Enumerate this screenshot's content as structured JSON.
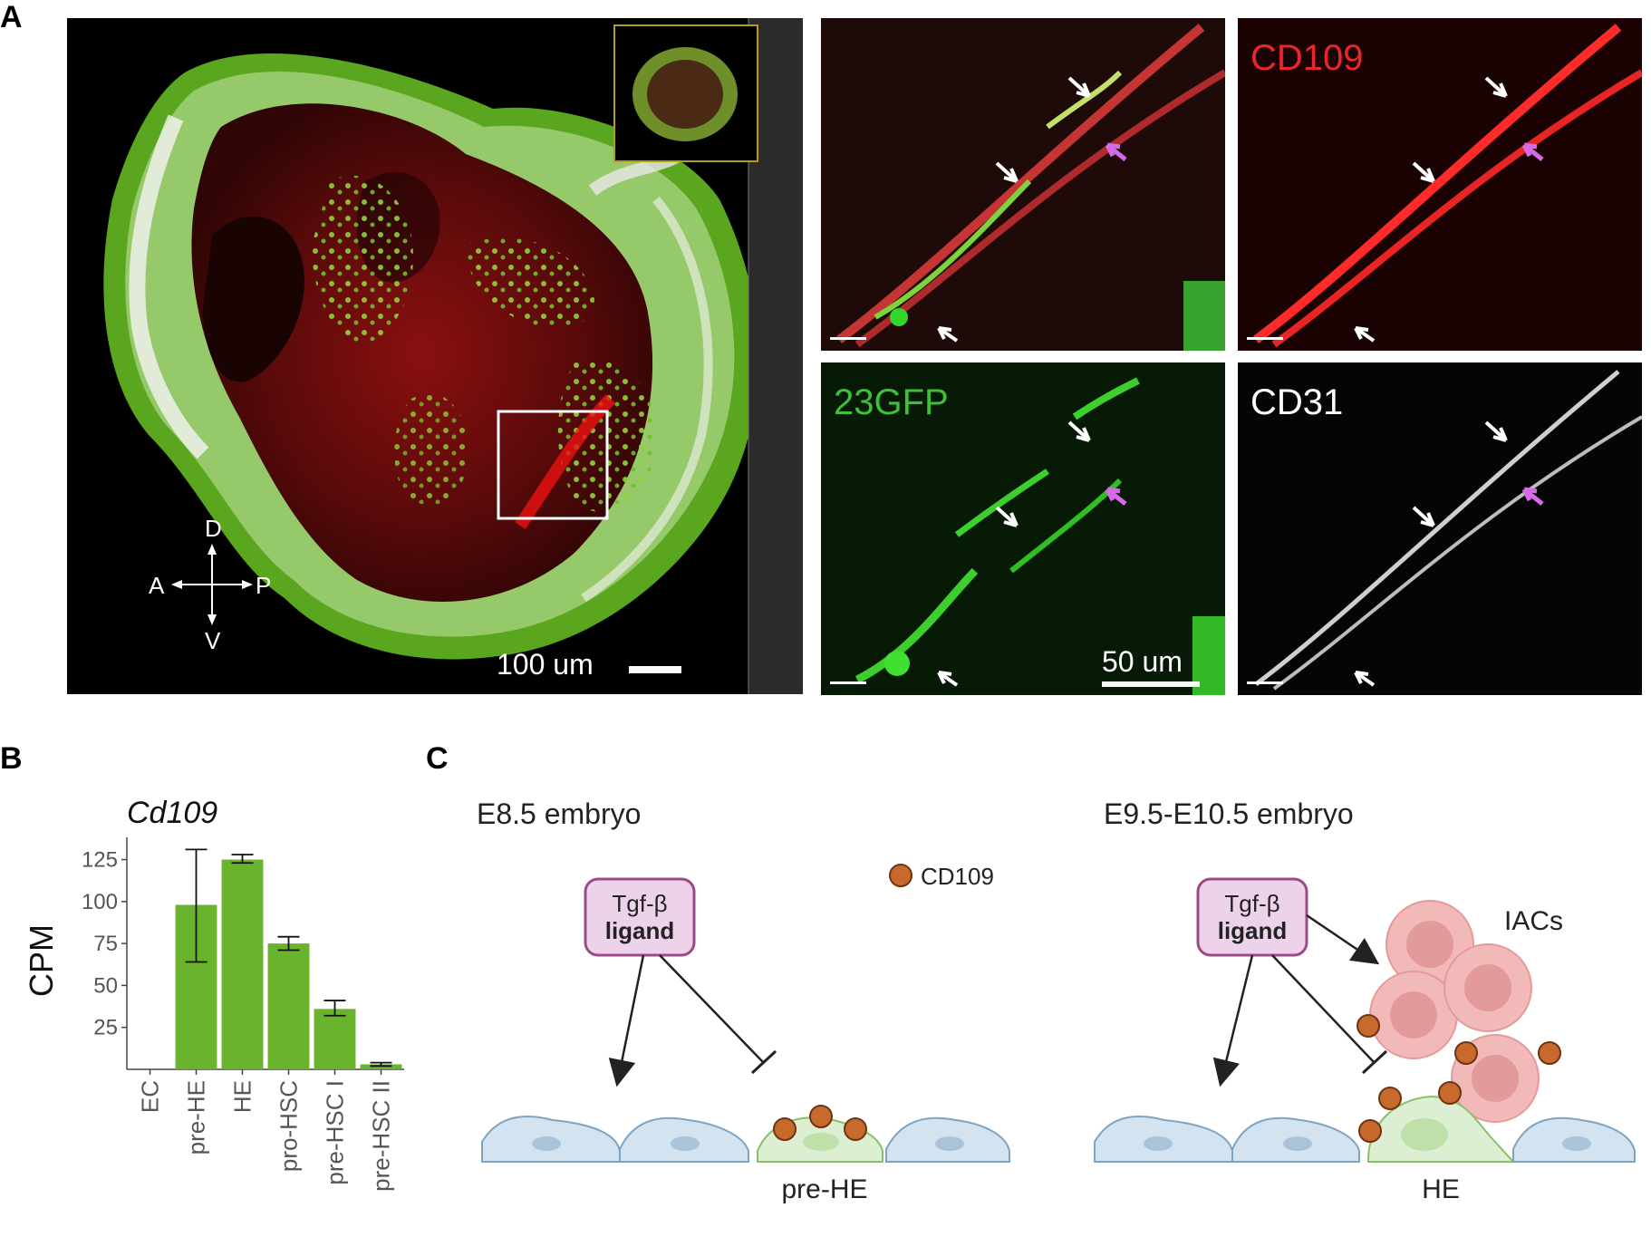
{
  "panel_letters": [
    "A",
    "B",
    "C"
  ],
  "panel_a": {
    "scalebar_main": "100 um",
    "scalebar_zoom": "50 um",
    "axes": {
      "d": "D",
      "v": "V",
      "a": "A",
      "p": "P"
    },
    "channels": [
      {
        "label": "CD109",
        "color": "#e8262b"
      },
      {
        "label": "23GFP",
        "color": "#3fbf3a"
      },
      {
        "label": "CD31",
        "color": "#ffffff"
      }
    ],
    "arrow_colors": {
      "white": "#ffffff",
      "magenta": "#d66ae6"
    }
  },
  "chart_data": {
    "type": "bar",
    "title": "Cd109",
    "ylabel": "CPM",
    "xlabel": "",
    "categories": [
      "EC",
      "pre-HE",
      "HE",
      "pro-HSC",
      "pre-HSC I",
      "pre-HSC II"
    ],
    "values": [
      0,
      98,
      125,
      75,
      36,
      3
    ],
    "errors_low": [
      0,
      64,
      123,
      71,
      32,
      2
    ],
    "errors_high": [
      0,
      131,
      128,
      79,
      41,
      4
    ],
    "yticks": [
      25,
      50,
      75,
      100,
      125
    ],
    "ylim": [
      0,
      135
    ],
    "bar_color": "#6ab42d",
    "grid": false
  },
  "panel_c": {
    "left_title": "E8.5 embryo",
    "right_title": "E9.5-E10.5 embryo",
    "legend_label": "CD109",
    "ligand_line1": "Tgf-β",
    "ligand_line2": "ligand",
    "left_cell_label": "pre-HE",
    "right_cell_label": "HE",
    "iac_label": "IACs",
    "colors": {
      "cd109_dot": "#c8692d",
      "ligand_box": "#ecd3ea",
      "ligand_border": "#9c4b86",
      "endothelial_cell": "#d3e3ef",
      "he_cell": "#dcefd2",
      "iac_cell": "#f2b9b9"
    }
  }
}
